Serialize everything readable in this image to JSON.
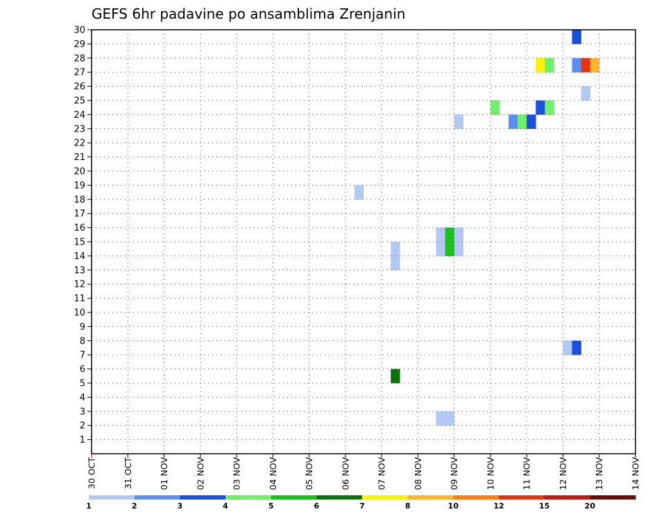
{
  "chart_data": {
    "type": "heatmap",
    "title": "GEFS 6hr padavine po ansamblima Zrenjanin",
    "x_tick_labels": [
      "30 OCT",
      "31 OCT",
      "01 NOV",
      "02 NOV",
      "03 NOV",
      "04 NOV",
      "05 NOV",
      "06 NOV",
      "07 NOV",
      "08 NOV",
      "09 NOV",
      "10 NOV",
      "11 NOV",
      "12 NOV",
      "13 NOV",
      "14 NOV"
    ],
    "x_range_days": [
      0,
      15
    ],
    "y_range": [
      0,
      30
    ],
    "y_tick_labels": [
      "1",
      "2",
      "3",
      "4",
      "5",
      "6",
      "7",
      "8",
      "9",
      "10",
      "11",
      "12",
      "13",
      "14",
      "15",
      "16",
      "17",
      "18",
      "19",
      "20",
      "21",
      "22",
      "23",
      "24",
      "25",
      "26",
      "27",
      "28",
      "29",
      "30"
    ],
    "grid": "dotted",
    "colorbar": {
      "labels": [
        "1",
        "2",
        "3",
        "4",
        "5",
        "6",
        "7",
        "8",
        "10",
        "12",
        "15",
        "20"
      ],
      "colors": [
        "#b4c8f6",
        "#5a8ef2",
        "#1a4fe0",
        "#6ff06a",
        "#19c21b",
        "#0a730c",
        "#fff200",
        "#ffb42a",
        "#ff7f12",
        "#e63412",
        "#bf1b12",
        "#6b0d0d"
      ]
    },
    "cells": [
      {
        "member": 30,
        "start_day": 13.25,
        "color": "#1a4fe0"
      },
      {
        "member": 28,
        "start_day": 12.25,
        "color": "#fff200"
      },
      {
        "member": 28,
        "start_day": 12.5,
        "color": "#6ff06a"
      },
      {
        "member": 28,
        "start_day": 13.25,
        "color": "#5a8ef2"
      },
      {
        "member": 28,
        "start_day": 13.5,
        "color": "#e63412"
      },
      {
        "member": 28,
        "start_day": 13.75,
        "color": "#ffb42a"
      },
      {
        "member": 26,
        "start_day": 13.5,
        "color": "#b4c8f6"
      },
      {
        "member": 25,
        "start_day": 11.0,
        "color": "#6ff06a"
      },
      {
        "member": 25,
        "start_day": 12.25,
        "color": "#1a4fe0"
      },
      {
        "member": 25,
        "start_day": 12.5,
        "color": "#6ff06a"
      },
      {
        "member": 24,
        "start_day": 10.0,
        "color": "#b4c8f6"
      },
      {
        "member": 24,
        "start_day": 11.5,
        "color": "#5a8ef2"
      },
      {
        "member": 24,
        "start_day": 11.75,
        "color": "#6ff06a"
      },
      {
        "member": 24,
        "start_day": 12.0,
        "color": "#1a4fe0"
      },
      {
        "member": 19,
        "start_day": 7.25,
        "color": "#b4c8f6"
      },
      {
        "member": 16,
        "start_day": 9.5,
        "color": "#b4c8f6"
      },
      {
        "member": 16,
        "start_day": 9.75,
        "color": "#19c21b"
      },
      {
        "member": 16,
        "start_day": 10.0,
        "color": "#b4c8f6"
      },
      {
        "member": 15,
        "start_day": 9.5,
        "color": "#b4c8f6"
      },
      {
        "member": 15,
        "start_day": 9.75,
        "color": "#19c21b"
      },
      {
        "member": 15,
        "start_day": 10.0,
        "color": "#b4c8f6"
      },
      {
        "member": 15,
        "start_day": 8.25,
        "color": "#b4c8f6"
      },
      {
        "member": 14,
        "start_day": 8.25,
        "color": "#b4c8f6"
      },
      {
        "member": 8,
        "start_day": 13.0,
        "color": "#b4c8f6"
      },
      {
        "member": 8,
        "start_day": 13.25,
        "color": "#1a4fe0"
      },
      {
        "member": 6,
        "start_day": 8.25,
        "color": "#0a730c"
      },
      {
        "member": 3,
        "start_day": 9.5,
        "color": "#b4c8f6"
      },
      {
        "member": 3,
        "start_day": 9.75,
        "color": "#b4c8f6"
      }
    ]
  }
}
